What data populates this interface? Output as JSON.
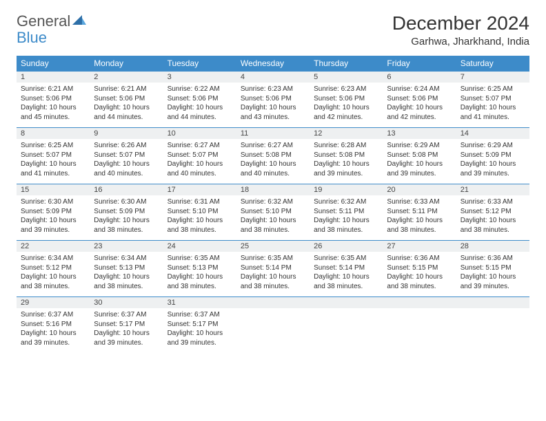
{
  "logo": {
    "text1": "General",
    "text2": "Blue"
  },
  "title": "December 2024",
  "location": "Garhwa, Jharkhand, India",
  "colors": {
    "header_bg": "#3d8bc9",
    "header_text": "#ffffff",
    "daynum_bg": "#eef0f1",
    "border": "#3d8bc9",
    "body_text": "#333333",
    "logo_gray": "#555555",
    "logo_blue": "#3d8bc9",
    "page_bg": "#ffffff"
  },
  "typography": {
    "title_fontsize": 28,
    "location_fontsize": 15,
    "header_fontsize": 12,
    "daynum_fontsize": 11,
    "cell_fontsize": 10
  },
  "weekdays": [
    "Sunday",
    "Monday",
    "Tuesday",
    "Wednesday",
    "Thursday",
    "Friday",
    "Saturday"
  ],
  "weeks": [
    [
      {
        "day": "1",
        "sunrise": "Sunrise: 6:21 AM",
        "sunset": "Sunset: 5:06 PM",
        "daylight": "Daylight: 10 hours and 45 minutes."
      },
      {
        "day": "2",
        "sunrise": "Sunrise: 6:21 AM",
        "sunset": "Sunset: 5:06 PM",
        "daylight": "Daylight: 10 hours and 44 minutes."
      },
      {
        "day": "3",
        "sunrise": "Sunrise: 6:22 AM",
        "sunset": "Sunset: 5:06 PM",
        "daylight": "Daylight: 10 hours and 44 minutes."
      },
      {
        "day": "4",
        "sunrise": "Sunrise: 6:23 AM",
        "sunset": "Sunset: 5:06 PM",
        "daylight": "Daylight: 10 hours and 43 minutes."
      },
      {
        "day": "5",
        "sunrise": "Sunrise: 6:23 AM",
        "sunset": "Sunset: 5:06 PM",
        "daylight": "Daylight: 10 hours and 42 minutes."
      },
      {
        "day": "6",
        "sunrise": "Sunrise: 6:24 AM",
        "sunset": "Sunset: 5:06 PM",
        "daylight": "Daylight: 10 hours and 42 minutes."
      },
      {
        "day": "7",
        "sunrise": "Sunrise: 6:25 AM",
        "sunset": "Sunset: 5:07 PM",
        "daylight": "Daylight: 10 hours and 41 minutes."
      }
    ],
    [
      {
        "day": "8",
        "sunrise": "Sunrise: 6:25 AM",
        "sunset": "Sunset: 5:07 PM",
        "daylight": "Daylight: 10 hours and 41 minutes."
      },
      {
        "day": "9",
        "sunrise": "Sunrise: 6:26 AM",
        "sunset": "Sunset: 5:07 PM",
        "daylight": "Daylight: 10 hours and 40 minutes."
      },
      {
        "day": "10",
        "sunrise": "Sunrise: 6:27 AM",
        "sunset": "Sunset: 5:07 PM",
        "daylight": "Daylight: 10 hours and 40 minutes."
      },
      {
        "day": "11",
        "sunrise": "Sunrise: 6:27 AM",
        "sunset": "Sunset: 5:08 PM",
        "daylight": "Daylight: 10 hours and 40 minutes."
      },
      {
        "day": "12",
        "sunrise": "Sunrise: 6:28 AM",
        "sunset": "Sunset: 5:08 PM",
        "daylight": "Daylight: 10 hours and 39 minutes."
      },
      {
        "day": "13",
        "sunrise": "Sunrise: 6:29 AM",
        "sunset": "Sunset: 5:08 PM",
        "daylight": "Daylight: 10 hours and 39 minutes."
      },
      {
        "day": "14",
        "sunrise": "Sunrise: 6:29 AM",
        "sunset": "Sunset: 5:09 PM",
        "daylight": "Daylight: 10 hours and 39 minutes."
      }
    ],
    [
      {
        "day": "15",
        "sunrise": "Sunrise: 6:30 AM",
        "sunset": "Sunset: 5:09 PM",
        "daylight": "Daylight: 10 hours and 39 minutes."
      },
      {
        "day": "16",
        "sunrise": "Sunrise: 6:30 AM",
        "sunset": "Sunset: 5:09 PM",
        "daylight": "Daylight: 10 hours and 38 minutes."
      },
      {
        "day": "17",
        "sunrise": "Sunrise: 6:31 AM",
        "sunset": "Sunset: 5:10 PM",
        "daylight": "Daylight: 10 hours and 38 minutes."
      },
      {
        "day": "18",
        "sunrise": "Sunrise: 6:32 AM",
        "sunset": "Sunset: 5:10 PM",
        "daylight": "Daylight: 10 hours and 38 minutes."
      },
      {
        "day": "19",
        "sunrise": "Sunrise: 6:32 AM",
        "sunset": "Sunset: 5:11 PM",
        "daylight": "Daylight: 10 hours and 38 minutes."
      },
      {
        "day": "20",
        "sunrise": "Sunrise: 6:33 AM",
        "sunset": "Sunset: 5:11 PM",
        "daylight": "Daylight: 10 hours and 38 minutes."
      },
      {
        "day": "21",
        "sunrise": "Sunrise: 6:33 AM",
        "sunset": "Sunset: 5:12 PM",
        "daylight": "Daylight: 10 hours and 38 minutes."
      }
    ],
    [
      {
        "day": "22",
        "sunrise": "Sunrise: 6:34 AM",
        "sunset": "Sunset: 5:12 PM",
        "daylight": "Daylight: 10 hours and 38 minutes."
      },
      {
        "day": "23",
        "sunrise": "Sunrise: 6:34 AM",
        "sunset": "Sunset: 5:13 PM",
        "daylight": "Daylight: 10 hours and 38 minutes."
      },
      {
        "day": "24",
        "sunrise": "Sunrise: 6:35 AM",
        "sunset": "Sunset: 5:13 PM",
        "daylight": "Daylight: 10 hours and 38 minutes."
      },
      {
        "day": "25",
        "sunrise": "Sunrise: 6:35 AM",
        "sunset": "Sunset: 5:14 PM",
        "daylight": "Daylight: 10 hours and 38 minutes."
      },
      {
        "day": "26",
        "sunrise": "Sunrise: 6:35 AM",
        "sunset": "Sunset: 5:14 PM",
        "daylight": "Daylight: 10 hours and 38 minutes."
      },
      {
        "day": "27",
        "sunrise": "Sunrise: 6:36 AM",
        "sunset": "Sunset: 5:15 PM",
        "daylight": "Daylight: 10 hours and 38 minutes."
      },
      {
        "day": "28",
        "sunrise": "Sunrise: 6:36 AM",
        "sunset": "Sunset: 5:15 PM",
        "daylight": "Daylight: 10 hours and 39 minutes."
      }
    ],
    [
      {
        "day": "29",
        "sunrise": "Sunrise: 6:37 AM",
        "sunset": "Sunset: 5:16 PM",
        "daylight": "Daylight: 10 hours and 39 minutes."
      },
      {
        "day": "30",
        "sunrise": "Sunrise: 6:37 AM",
        "sunset": "Sunset: 5:17 PM",
        "daylight": "Daylight: 10 hours and 39 minutes."
      },
      {
        "day": "31",
        "sunrise": "Sunrise: 6:37 AM",
        "sunset": "Sunset: 5:17 PM",
        "daylight": "Daylight: 10 hours and 39 minutes."
      },
      null,
      null,
      null,
      null
    ]
  ]
}
